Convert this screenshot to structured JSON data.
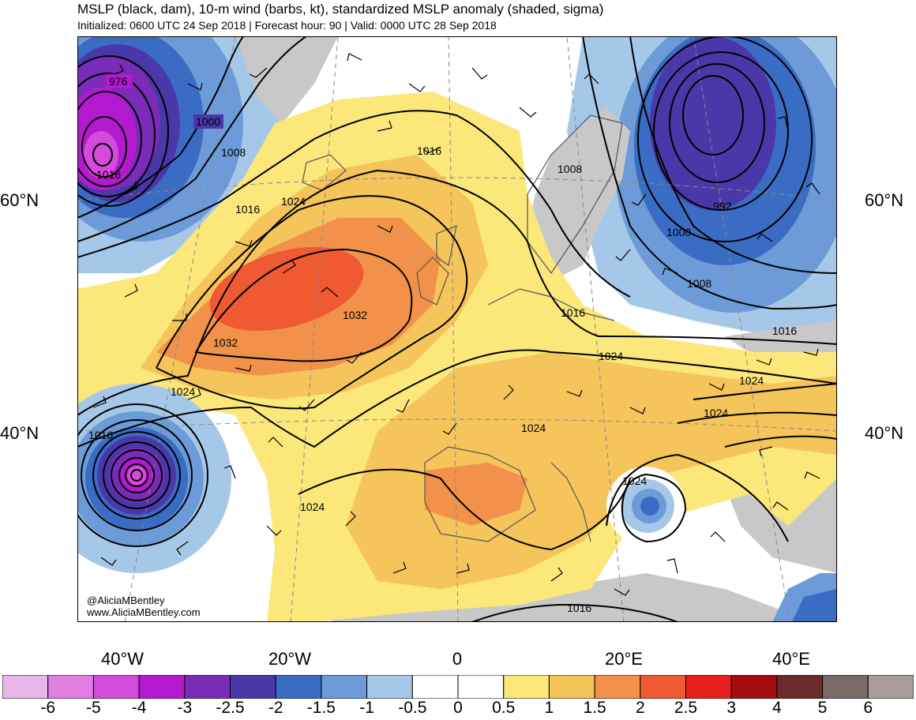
{
  "header": {
    "title": "MSLP (black, dam), 10-m wind (barbs, kt), standardized MSLP anomaly (shaded, sigma)",
    "subtitle": "Initialized: 0600 UTC 24 Sep 2018 | Forecast hour: 90 | Valid: 0000 UTC 28 Sep 2018"
  },
  "axes": {
    "lat_left": [
      "60°N",
      "40°N"
    ],
    "lat_right": [
      "60°N",
      "40°N"
    ],
    "lon": [
      "40°W",
      "20°W",
      "0",
      "20°E",
      "40°E"
    ]
  },
  "credits": {
    "handle": "@AliciaMBentley",
    "website": "www.AliciaMBentley.com"
  },
  "contour_labels": [
    "976",
    "1000",
    "1008",
    "1016",
    "1024",
    "1032",
    "1032",
    "1016",
    "1008",
    "1024",
    "992",
    "1000",
    "1008",
    "1016",
    "1016",
    "1024",
    "1024",
    "1024",
    "1024",
    "1016",
    "1024",
    "1024",
    "1016",
    "1016"
  ],
  "colorbar": {
    "ticks": [
      "-6",
      "-5",
      "-4",
      "-3",
      "-2.5",
      "-2",
      "-1.5",
      "-1",
      "-0.5",
      "0",
      "0.5",
      "1",
      "1.5",
      "2",
      "2.5",
      "3",
      "4",
      "5",
      "6"
    ],
    "colors": [
      "#e8b6e6",
      "#e07ee2",
      "#d44bdc",
      "#b31ad0",
      "#7a2cb8",
      "#4a38a8",
      "#3a6cc4",
      "#6c9bd8",
      "#a6c8e8",
      "#ffffff",
      "#ffffff",
      "#fbe77a",
      "#f5c45a",
      "#f2924a",
      "#ef5a32",
      "#e81f1f",
      "#a30d0d",
      "#6d2a2a",
      "#786a66",
      "#a89c9c"
    ]
  },
  "colors": {
    "land_gray": "#c8c8c8",
    "border": "#555555",
    "grid": "#888888"
  }
}
